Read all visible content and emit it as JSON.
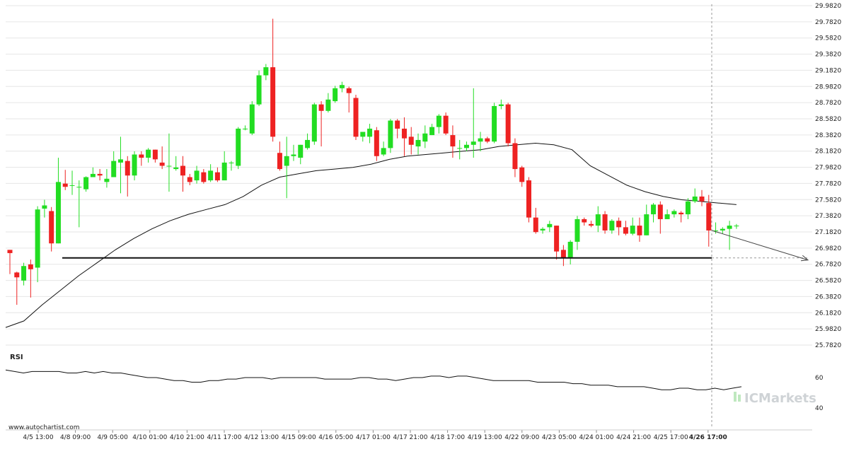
{
  "chart_data": {
    "type": "candlestick",
    "y_axis": {
      "ticks": [
        "29.9820",
        "29.7820",
        "29.5820",
        "29.3820",
        "29.1820",
        "28.9820",
        "28.7820",
        "28.5820",
        "28.3820",
        "28.1820",
        "27.9820",
        "27.7820",
        "27.5820",
        "27.3820",
        "27.1820",
        "26.9820",
        "26.7820",
        "26.5820",
        "26.3820",
        "26.1820",
        "25.9820",
        "25.7820"
      ],
      "range": [
        25.782,
        29.982
      ]
    },
    "x_axis": {
      "ticks": [
        "4/5 13:00",
        "4/8 09:00",
        "4/9 05:00",
        "4/10 01:00",
        "4/10 21:00",
        "4/11 17:00",
        "4/12 13:00",
        "4/15 09:00",
        "4/16 05:00",
        "4/17 01:00",
        "4/17 21:00",
        "4/18 17:00",
        "4/19 13:00",
        "4/22 09:00",
        "4/23 05:00",
        "4/24 01:00",
        "4/24 21:00",
        "4/25 17:00",
        "4/26 17:00"
      ],
      "highlight": "4/26 17:00"
    },
    "up_color": "#22dd22",
    "down_color": "#ee2222",
    "candles": [
      [
        26.96,
        26.92,
        26.96,
        26.66
      ],
      [
        26.68,
        26.62,
        26.69,
        26.28
      ],
      [
        26.58,
        26.76,
        26.8,
        26.52
      ],
      [
        26.78,
        26.72,
        26.84,
        26.37
      ],
      [
        26.74,
        27.46,
        27.5,
        26.56
      ],
      [
        27.47,
        27.51,
        27.58,
        27.36
      ],
      [
        27.44,
        27.04,
        27.49,
        26.94
      ],
      [
        27.04,
        27.8,
        28.1,
        27.04
      ],
      [
        27.78,
        27.74,
        27.95,
        27.7
      ],
      [
        27.76,
        27.76,
        27.94,
        27.64
      ],
      [
        27.74,
        27.74,
        27.82,
        27.24
      ],
      [
        27.71,
        27.86,
        27.87,
        27.68
      ],
      [
        27.86,
        27.9,
        27.98,
        27.86
      ],
      [
        27.9,
        27.88,
        27.96,
        27.82
      ],
      [
        27.8,
        27.84,
        27.96,
        27.73
      ],
      [
        27.86,
        28.06,
        28.18,
        27.86
      ],
      [
        28.04,
        28.08,
        28.36,
        27.66
      ],
      [
        28.06,
        27.88,
        28.12,
        27.62
      ],
      [
        27.88,
        28.14,
        28.18,
        27.82
      ],
      [
        28.14,
        28.1,
        28.18,
        28.0
      ],
      [
        28.1,
        28.2,
        28.22,
        28.04
      ],
      [
        28.2,
        28.08,
        28.2,
        28.04
      ],
      [
        28.04,
        28.0,
        28.24,
        27.96
      ],
      [
        28.0,
        28.0,
        28.4,
        27.68
      ],
      [
        27.96,
        27.98,
        28.12,
        27.94
      ],
      [
        28.0,
        27.88,
        28.12,
        27.68
      ],
      [
        27.86,
        27.8,
        27.9,
        27.76
      ],
      [
        27.82,
        27.94,
        28.0,
        27.78
      ],
      [
        27.92,
        27.8,
        27.96,
        27.78
      ],
      [
        27.82,
        27.94,
        28.02,
        27.8
      ],
      [
        27.92,
        27.82,
        27.98,
        27.8
      ],
      [
        27.82,
        28.04,
        28.18,
        27.84
      ],
      [
        28.04,
        28.04,
        28.06,
        27.94
      ],
      [
        28.0,
        28.46,
        28.48,
        27.96
      ],
      [
        28.46,
        28.46,
        28.5,
        28.44
      ],
      [
        28.4,
        28.76,
        28.8,
        28.38
      ],
      [
        28.76,
        29.12,
        29.18,
        28.74
      ],
      [
        29.12,
        29.22,
        29.26,
        29.06
      ],
      [
        29.22,
        28.36,
        29.82,
        28.3
      ],
      [
        28.16,
        27.96,
        28.3,
        27.94
      ],
      [
        28.0,
        28.12,
        28.36,
        27.6
      ],
      [
        28.12,
        28.14,
        28.26,
        28.06
      ],
      [
        28.1,
        28.26,
        28.26,
        28.02
      ],
      [
        28.22,
        28.32,
        28.4,
        28.2
      ],
      [
        28.3,
        28.76,
        28.78,
        28.26
      ],
      [
        28.76,
        28.68,
        28.8,
        28.24
      ],
      [
        28.68,
        28.82,
        28.9,
        28.66
      ],
      [
        28.8,
        28.96,
        28.99,
        28.78
      ],
      [
        28.96,
        29.0,
        29.04,
        28.91
      ],
      [
        28.96,
        28.9,
        28.98,
        28.66
      ],
      [
        28.84,
        28.36,
        28.88,
        28.32
      ],
      [
        28.36,
        28.42,
        28.42,
        28.3
      ],
      [
        28.36,
        28.46,
        28.52,
        28.28
      ],
      [
        28.44,
        28.12,
        28.48,
        28.06
      ],
      [
        28.14,
        28.22,
        28.3,
        28.12
      ],
      [
        28.22,
        28.56,
        28.58,
        28.16
      ],
      [
        28.56,
        28.46,
        28.58,
        28.34
      ],
      [
        28.46,
        28.34,
        28.6,
        28.12
      ],
      [
        28.36,
        28.26,
        28.48,
        28.14
      ],
      [
        28.24,
        28.32,
        28.4,
        28.14
      ],
      [
        28.3,
        28.4,
        28.5,
        28.22
      ],
      [
        28.38,
        28.48,
        28.52,
        28.38
      ],
      [
        28.48,
        28.62,
        28.64,
        28.4
      ],
      [
        28.62,
        28.4,
        28.66,
        28.38
      ],
      [
        28.38,
        28.24,
        28.5,
        28.1
      ],
      [
        28.22,
        28.22,
        28.32,
        28.08
      ],
      [
        28.22,
        28.26,
        28.3,
        28.18
      ],
      [
        28.26,
        28.3,
        28.96,
        28.1
      ],
      [
        28.3,
        28.34,
        28.42,
        28.18
      ],
      [
        28.34,
        28.3,
        28.36,
        28.28
      ],
      [
        28.3,
        28.74,
        28.78,
        28.28
      ],
      [
        28.74,
        28.76,
        28.82,
        28.7
      ],
      [
        28.76,
        28.28,
        28.78,
        28.24
      ],
      [
        28.28,
        27.96,
        28.34,
        27.86
      ],
      [
        27.98,
        27.8,
        28.0,
        27.74
      ],
      [
        27.82,
        27.36,
        27.86,
        27.3
      ],
      [
        27.36,
        27.18,
        27.48,
        27.16
      ],
      [
        27.2,
        27.22,
        27.24,
        27.16
      ],
      [
        27.24,
        27.28,
        27.32,
        27.18
      ],
      [
        27.26,
        26.94,
        27.26,
        26.84
      ],
      [
        26.96,
        26.86,
        27.02,
        26.76
      ],
      [
        26.86,
        27.06,
        27.08,
        26.78
      ],
      [
        27.06,
        27.34,
        27.38,
        26.96
      ],
      [
        27.34,
        27.3,
        27.36,
        27.26
      ],
      [
        27.28,
        27.26,
        27.32,
        27.24
      ],
      [
        27.26,
        27.4,
        27.5,
        27.18
      ],
      [
        27.4,
        27.2,
        27.44,
        27.16
      ],
      [
        27.2,
        27.32,
        27.34,
        27.16
      ],
      [
        27.32,
        27.24,
        27.36,
        27.14
      ],
      [
        27.24,
        27.16,
        27.32,
        27.14
      ],
      [
        27.16,
        27.26,
        27.36,
        27.14
      ],
      [
        27.26,
        27.14,
        27.36,
        27.06
      ],
      [
        27.14,
        27.4,
        27.52,
        27.14
      ],
      [
        27.4,
        27.52,
        27.54,
        27.3
      ],
      [
        27.52,
        27.34,
        27.56,
        27.16
      ],
      [
        27.34,
        27.4,
        27.46,
        27.34
      ],
      [
        27.4,
        27.44,
        27.46,
        27.36
      ],
      [
        27.42,
        27.4,
        27.44,
        27.3
      ],
      [
        27.4,
        27.56,
        27.6,
        27.34
      ],
      [
        27.56,
        27.62,
        27.72,
        27.54
      ],
      [
        27.62,
        27.56,
        27.7,
        27.5
      ],
      [
        27.54,
        27.2,
        27.64,
        27.0
      ],
      [
        27.2,
        27.2,
        27.3,
        27.16
      ],
      [
        27.2,
        27.22,
        27.24,
        27.16
      ],
      [
        27.22,
        27.26,
        27.32,
        26.96
      ],
      [
        27.26,
        27.26,
        27.28,
        27.22
      ]
    ],
    "moving_average": [
      26.0,
      26.08,
      26.28,
      26.46,
      26.64,
      26.8,
      26.96,
      27.1,
      27.22,
      27.32,
      27.4,
      27.46,
      27.52,
      27.62,
      27.76,
      27.86,
      27.9,
      27.94,
      27.96,
      27.98,
      28.02,
      28.08,
      28.12,
      28.14,
      28.16,
      28.18,
      28.2,
      28.24,
      28.26,
      28.28,
      28.26,
      28.2,
      28.0,
      27.88,
      27.76,
      27.68,
      27.62,
      27.58,
      27.56,
      27.54,
      27.52
    ],
    "support_level": 26.86,
    "forecast": {
      "from": 27.2,
      "to": 26.84
    },
    "rsi": {
      "label": "RSI",
      "ticks": [
        "60",
        "40"
      ],
      "values": [
        65,
        64,
        63,
        64,
        64,
        64,
        64,
        63,
        63,
        64,
        63,
        64,
        63,
        63,
        62,
        61,
        60,
        60,
        59,
        58,
        58,
        57,
        57,
        58,
        58,
        59,
        59,
        60,
        60,
        60,
        59,
        60,
        60,
        60,
        60,
        60,
        59,
        59,
        59,
        59,
        60,
        60,
        59,
        59,
        58,
        59,
        60,
        60,
        61,
        61,
        60,
        61,
        61,
        60,
        59,
        58,
        58,
        58,
        58,
        58,
        57,
        57,
        57,
        57,
        56,
        56,
        55,
        55,
        55,
        54,
        54,
        54,
        54,
        53,
        52,
        52,
        53,
        53,
        52,
        52,
        53,
        52,
        53,
        54
      ]
    },
    "footer_text": "www.autochartist.com",
    "brand_text": "ICMarkets"
  }
}
